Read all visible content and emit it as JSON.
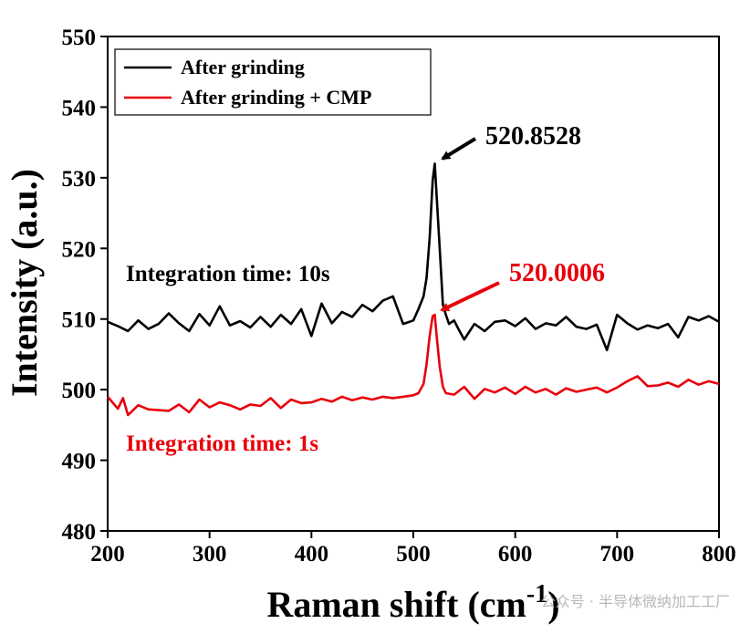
{
  "chart_data": {
    "type": "line",
    "xlabel": "Raman shift (cm",
    "xlabel_sup": "-1",
    "xlabel_close": ")",
    "ylabel": "Intensity (a.u.)",
    "xlim": [
      200,
      800
    ],
    "ylim": [
      480,
      550
    ],
    "xticks": [
      "200",
      "300",
      "400",
      "500",
      "600",
      "700",
      "800"
    ],
    "yticks": [
      "480",
      "490",
      "500",
      "510",
      "520",
      "530",
      "540",
      "550"
    ],
    "legend_position": "top-left",
    "series": [
      {
        "name": "After grinding",
        "color": "#000000",
        "x": [
          200,
          210,
          220,
          230,
          240,
          250,
          260,
          270,
          280,
          290,
          300,
          310,
          320,
          330,
          340,
          350,
          360,
          370,
          380,
          390,
          400,
          410,
          420,
          430,
          440,
          450,
          460,
          470,
          480,
          490,
          500,
          505,
          510,
          513,
          516,
          519,
          521,
          523,
          526,
          529,
          532,
          535,
          540,
          545,
          550,
          560,
          570,
          580,
          590,
          600,
          610,
          620,
          630,
          640,
          650,
          660,
          670,
          680,
          690,
          700,
          710,
          720,
          730,
          740,
          750,
          760,
          770,
          780,
          790,
          800
        ],
        "values": [
          509.6,
          509.0,
          508.3,
          509.8,
          508.6,
          509.3,
          510.8,
          509.4,
          508.3,
          510.7,
          509.1,
          511.8,
          509.1,
          509.7,
          508.8,
          510.3,
          508.9,
          510.6,
          509.3,
          511.4,
          507.6,
          512.2,
          509.4,
          511.0,
          510.3,
          512.0,
          511.1,
          512.6,
          513.2,
          509.3,
          509.8,
          511.4,
          513.2,
          515.8,
          521.5,
          529.6,
          532.0,
          527.1,
          519.8,
          512.1,
          510.6,
          509.3,
          509.8,
          508.4,
          507.1,
          509.3,
          508.3,
          509.6,
          509.8,
          509.0,
          510.1,
          508.6,
          509.4,
          509.1,
          510.3,
          508.9,
          508.6,
          509.2,
          505.6,
          510.6,
          509.4,
          508.5,
          509.1,
          508.7,
          509.3,
          507.4,
          510.3,
          509.8,
          510.4,
          509.6
        ]
      },
      {
        "name": "After grinding + CMP",
        "color": "#e8000b",
        "x": [
          200,
          210,
          215,
          220,
          230,
          240,
          250,
          260,
          270,
          280,
          290,
          300,
          310,
          320,
          330,
          340,
          350,
          360,
          370,
          380,
          390,
          400,
          410,
          420,
          430,
          440,
          450,
          460,
          470,
          480,
          490,
          500,
          505,
          510,
          513,
          516,
          519,
          521,
          523,
          526,
          529,
          532,
          540,
          550,
          560,
          570,
          580,
          590,
          600,
          610,
          620,
          630,
          640,
          650,
          660,
          670,
          680,
          690,
          700,
          710,
          720,
          730,
          740,
          750,
          760,
          770,
          780,
          790,
          800
        ],
        "values": [
          499.0,
          497.3,
          498.8,
          496.4,
          497.8,
          497.2,
          497.1,
          497.0,
          497.9,
          496.8,
          498.6,
          497.5,
          498.2,
          497.8,
          497.2,
          497.9,
          497.7,
          498.8,
          497.4,
          498.6,
          498.1,
          498.2,
          498.7,
          498.3,
          499.0,
          498.5,
          498.9,
          498.6,
          499.0,
          498.8,
          499.0,
          499.2,
          499.5,
          500.8,
          503.6,
          507.6,
          510.4,
          510.6,
          507.4,
          503.2,
          500.4,
          499.5,
          499.3,
          500.4,
          498.7,
          500.1,
          499.6,
          500.3,
          499.4,
          500.4,
          499.6,
          500.1,
          499.3,
          500.2,
          499.7,
          500.0,
          500.3,
          499.6,
          500.3,
          501.2,
          501.9,
          500.5,
          500.6,
          501.0,
          500.4,
          501.4,
          500.7,
          501.2,
          500.8
        ]
      }
    ],
    "annotations": [
      {
        "text": "520.8528",
        "color": "#000000"
      },
      {
        "text": "520.0006",
        "color": "#e8000b"
      },
      {
        "text": "Integration time: 10s",
        "color": "#000000"
      },
      {
        "text": "Integration time: 1s",
        "color": "#e8000b"
      }
    ]
  },
  "watermark": "公众号 · 半导体微纳加工工厂"
}
